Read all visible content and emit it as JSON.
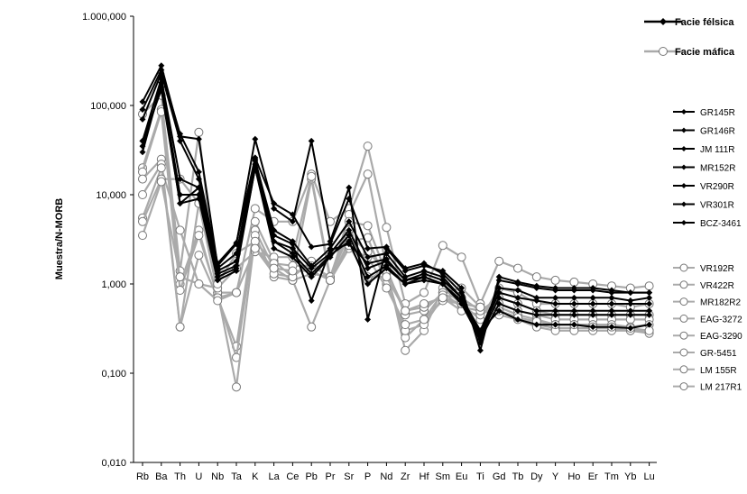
{
  "chart_data": {
    "type": "line",
    "y_scale": "log",
    "ylim": [
      0.01,
      1000
    ],
    "ylabel": "Muestra/N-MORB",
    "y_ticks": [
      "0,010",
      "0,100",
      "1,000",
      "10,000",
      "100,000",
      "1.000,000"
    ],
    "categories": [
      "Rb",
      "Ba",
      "Th",
      "U",
      "Nb",
      "Ta",
      "K",
      "La",
      "Ce",
      "Pb",
      "Pr",
      "Sr",
      "P",
      "Nd",
      "Zr",
      "Hf",
      "Sm",
      "Eu",
      "Ti",
      "Gd",
      "Tb",
      "Dy",
      "Y",
      "Ho",
      "Er",
      "Tm",
      "Yb",
      "Lu"
    ],
    "grid": false,
    "legend_groups": [
      {
        "name": "Facie félsica",
        "color": "#000000",
        "marker": "diamond"
      },
      {
        "name": "Facie máfica",
        "color": "#aaaaaa",
        "marker": "circle"
      }
    ],
    "series": [
      {
        "name": "GR145R",
        "group": "felsic",
        "values": [
          110,
          280,
          45,
          42,
          1.6,
          2.8,
          42,
          7,
          5,
          40,
          3,
          12,
          0.4,
          2.5,
          1.4,
          1.6,
          1.4,
          0.9,
          0.18,
          1.2,
          1.05,
          0.95,
          0.9,
          0.9,
          0.9,
          0.85,
          0.8,
          0.8
        ]
      },
      {
        "name": "GR146R",
        "group": "felsic",
        "values": [
          90,
          250,
          48,
          18,
          1.7,
          2.9,
          26,
          8,
          6,
          2.6,
          2.8,
          9,
          2.5,
          2.6,
          1.5,
          1.7,
          1.3,
          0.8,
          0.22,
          1.1,
          1.0,
          0.9,
          0.85,
          0.85,
          0.85,
          0.8,
          0.8,
          0.8
        ]
      },
      {
        "name": "JM 111R",
        "group": "felsic",
        "values": [
          70,
          230,
          40,
          15,
          1.5,
          2.2,
          24,
          4,
          3,
          1.6,
          2.5,
          5,
          2.0,
          2.2,
          1.2,
          1.4,
          1.2,
          0.7,
          0.3,
          0.9,
          0.85,
          0.7,
          0.7,
          0.7,
          0.7,
          0.7,
          0.65,
          0.7
        ]
      },
      {
        "name": "MR152R",
        "group": "felsic",
        "values": [
          40,
          200,
          15,
          12,
          1.3,
          1.6,
          22,
          3,
          2.5,
          1.5,
          2.2,
          4,
          1.5,
          1.8,
          1.1,
          1.3,
          1.1,
          0.7,
          0.28,
          0.8,
          0.7,
          0.65,
          0.6,
          0.6,
          0.6,
          0.6,
          0.6,
          0.6
        ]
      },
      {
        "name": "VR290R",
        "group": "felsic",
        "values": [
          30,
          180,
          10,
          10,
          1.2,
          1.5,
          20,
          2.5,
          2.0,
          1.2,
          2.0,
          3.5,
          1.2,
          1.6,
          1.0,
          1.2,
          1.0,
          0.65,
          0.26,
          0.7,
          0.6,
          0.5,
          0.5,
          0.5,
          0.5,
          0.5,
          0.5,
          0.5
        ]
      },
      {
        "name": "VR301R",
        "group": "felsic",
        "values": [
          35,
          160,
          8,
          9,
          1.1,
          1.4,
          20,
          3,
          2.2,
          1.3,
          2.1,
          3,
          1.0,
          1.5,
          1.0,
          1.1,
          1.0,
          0.6,
          0.24,
          0.6,
          0.5,
          0.45,
          0.45,
          0.45,
          0.45,
          0.45,
          0.45,
          0.45
        ]
      },
      {
        "name": "BCZ-3461",
        "group": "felsic",
        "values": [
          40,
          150,
          8,
          12,
          1.4,
          1.8,
          25,
          3.5,
          2.8,
          0.65,
          2.4,
          2.8,
          1.7,
          1.9,
          1.1,
          1.2,
          1.0,
          0.6,
          0.3,
          0.5,
          0.4,
          0.35,
          0.35,
          0.35,
          0.33,
          0.33,
          0.32,
          0.35
        ]
      },
      {
        "name": "VR192R",
        "group": "mafic",
        "values": [
          80,
          130,
          1.4,
          50,
          0.8,
          0.8,
          7,
          5,
          5,
          17,
          5,
          7,
          35,
          4.3,
          0.6,
          0.8,
          2.7,
          2.0,
          0.6,
          1.8,
          1.5,
          1.2,
          1.1,
          1.05,
          1.0,
          0.95,
          0.9,
          0.95
        ]
      },
      {
        "name": "VR422R",
        "group": "mafic",
        "values": [
          20,
          90,
          1.0,
          4,
          0.7,
          0.2,
          5,
          1.8,
          1.2,
          15,
          1.1,
          6,
          17,
          1.5,
          0.18,
          0.3,
          0.9,
          0.6,
          0.4,
          0.9,
          0.8,
          0.6,
          0.6,
          0.6,
          0.6,
          0.6,
          0.55,
          0.6
        ]
      },
      {
        "name": "MR182R2",
        "group": "mafic",
        "values": [
          18,
          85,
          0.85,
          3.5,
          0.75,
          0.15,
          4,
          1.5,
          1.1,
          1.3,
          1.2,
          5,
          4.5,
          1.3,
          0.25,
          0.4,
          0.8,
          0.55,
          0.5,
          0.7,
          0.6,
          0.5,
          0.45,
          0.45,
          0.45,
          0.45,
          0.45,
          0.45
        ]
      },
      {
        "name": "EAG-3272",
        "group": "mafic",
        "values": [
          15,
          25,
          0.33,
          8,
          0.8,
          0.07,
          3.5,
          1.2,
          1.1,
          0.33,
          1.1,
          3,
          3.3,
          1.0,
          0.3,
          0.35,
          0.7,
          0.5,
          0.45,
          0.6,
          0.5,
          0.45,
          0.4,
          0.4,
          0.4,
          0.4,
          0.4,
          0.4
        ]
      },
      {
        "name": "EAG-3290",
        "group": "mafic",
        "values": [
          10,
          22,
          0.33,
          2.1,
          0.7,
          0.8,
          2.5,
          1.3,
          1.2,
          1.8,
          1.1,
          2.5,
          2.0,
          0.9,
          0.35,
          0.4,
          0.65,
          0.6,
          0.55,
          0.55,
          0.45,
          0.4,
          0.35,
          0.35,
          0.35,
          0.35,
          0.33,
          0.35
        ]
      },
      {
        "name": "GR-5451",
        "group": "mafic",
        "values": [
          5.5,
          20,
          4,
          1.0,
          0.9,
          1.5,
          2.3,
          2.0,
          2.0,
          16,
          1.2,
          4,
          1.1,
          1.5,
          0.45,
          0.5,
          0.8,
          0.9,
          0.55,
          0.5,
          0.42,
          0.35,
          0.32,
          0.32,
          0.32,
          0.32,
          0.3,
          0.3
        ]
      },
      {
        "name": "LM 155R",
        "group": "mafic",
        "values": [
          5,
          15,
          15,
          8,
          1.0,
          2.2,
          3,
          1.7,
          1.6,
          1.6,
          1.2,
          3.5,
          2.3,
          1.4,
          0.5,
          0.55,
          0.75,
          0.7,
          0.5,
          0.45,
          0.4,
          0.33,
          0.3,
          0.3,
          0.3,
          0.3,
          0.3,
          0.28
        ]
      },
      {
        "name": "LM 217R1",
        "group": "mafic",
        "values": [
          3.5,
          14,
          1.2,
          1.0,
          0.65,
          0.8,
          2.5,
          1.5,
          1.4,
          1.4,
          1.1,
          2.7,
          1.2,
          1.2,
          0.5,
          0.6,
          0.7,
          0.6,
          0.55,
          0.5,
          0.42,
          0.38,
          0.35,
          0.35,
          0.33,
          0.33,
          0.32,
          0.3
        ]
      }
    ]
  }
}
